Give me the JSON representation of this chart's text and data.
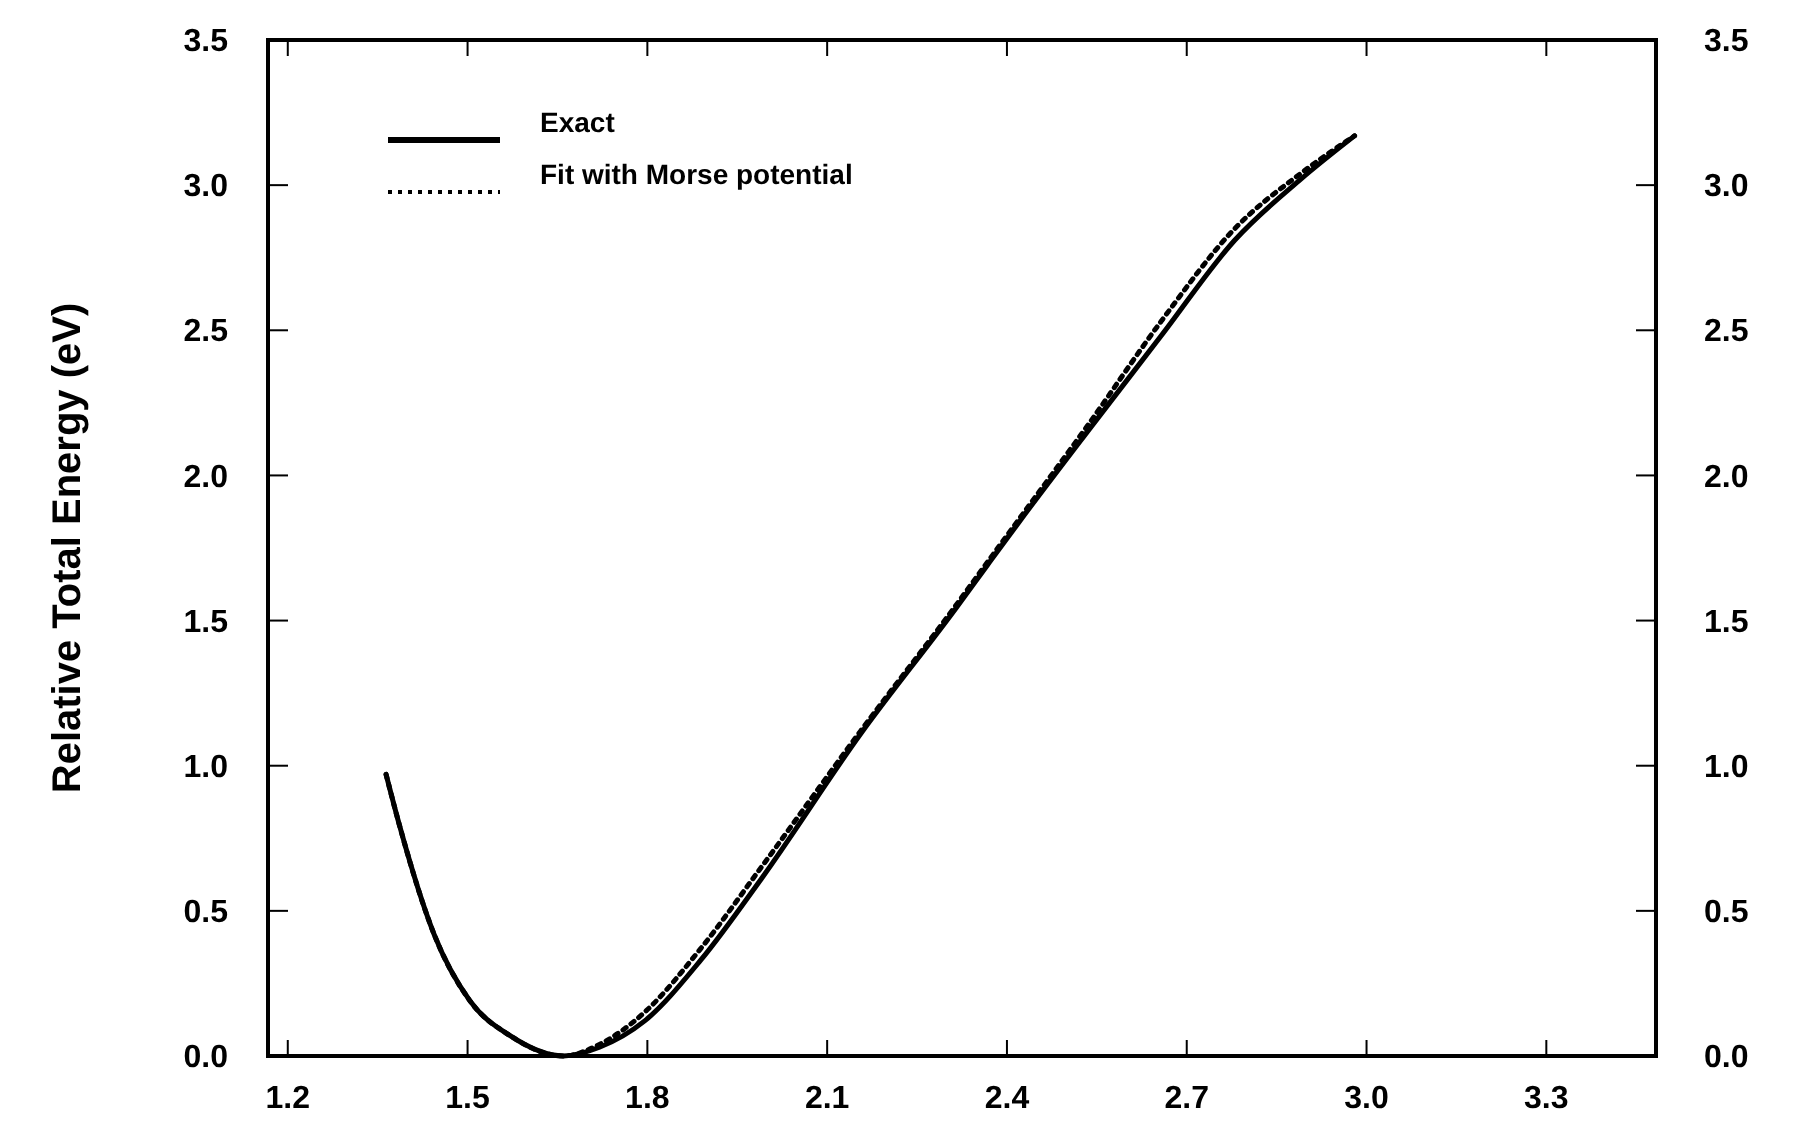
{
  "chart_data": {
    "type": "line",
    "ylabel": "Relative Total Energy (eV)",
    "xlim": [
      1.167,
      3.483
    ],
    "xticks": [
      {
        "value": 1.2,
        "label": "1.2"
      },
      {
        "value": 1.5,
        "label": "1.5"
      },
      {
        "value": 1.8,
        "label": "1.8"
      },
      {
        "value": 2.1,
        "label": "2.1"
      },
      {
        "value": 2.4,
        "label": "2.4"
      },
      {
        "value": 2.7,
        "label": "2.7"
      },
      {
        "value": 3.0,
        "label": "3.0"
      },
      {
        "value": 3.3,
        "label": "3.3"
      }
    ],
    "ylim": [
      0,
      3.5
    ],
    "yticks": [
      {
        "value": 0,
        "label": "0.0"
      },
      {
        "value": 0.5,
        "label": "0.5"
      },
      {
        "value": 1,
        "label": "1.0"
      },
      {
        "value": 1.5,
        "label": "1.5"
      },
      {
        "value": 2,
        "label": "2.0"
      },
      {
        "value": 2.5,
        "label": "2.5"
      },
      {
        "value": 3,
        "label": "3.0"
      },
      {
        "value": 3.5,
        "label": "3.5"
      }
    ],
    "y2lim": [
      0,
      3.5
    ],
    "y2ticks": [
      {
        "value": 0,
        "label": "0.0"
      },
      {
        "value": 0.5,
        "label": "0.5"
      },
      {
        "value": 1,
        "label": "1.0"
      },
      {
        "value": 1.5,
        "label": "1.5"
      },
      {
        "value": 2,
        "label": "2.0"
      },
      {
        "value": 2.5,
        "label": "2.5"
      },
      {
        "value": 3,
        "label": "3.0"
      },
      {
        "value": 3.5,
        "label": "3.5"
      }
    ],
    "grid": false,
    "legend": "top left",
    "x": [
      1.364,
      1.387,
      1.444,
      1.504,
      1.571,
      1.66,
      1.72,
      1.795,
      1.889,
      1.99,
      2.156,
      2.314,
      2.367,
      2.424,
      2.534,
      2.657,
      2.78,
      2.89,
      2.98
    ],
    "series": [
      {
        "name": "Exact",
        "color": "#000000",
        "line_style": "solid",
        "values": [
          0.97,
          0.79,
          0.42,
          0.19,
          0.07,
          0,
          0.03,
          0.12,
          0.33,
          0.61,
          1.11,
          1.54,
          1.69,
          1.85,
          2.15,
          2.48,
          2.81,
          3.02,
          3.17
        ]
      },
      {
        "name": "Fit with Morse potential",
        "color": "#000000",
        "line_style": "dotted",
        "values": [
          0.97,
          0.79,
          0.42,
          0.19,
          0.07,
          0,
          0.04,
          0.15,
          0.37,
          0.65,
          1.12,
          1.55,
          1.7,
          1.86,
          2.17,
          2.53,
          2.85,
          3.04,
          3.17
        ]
      }
    ]
  }
}
